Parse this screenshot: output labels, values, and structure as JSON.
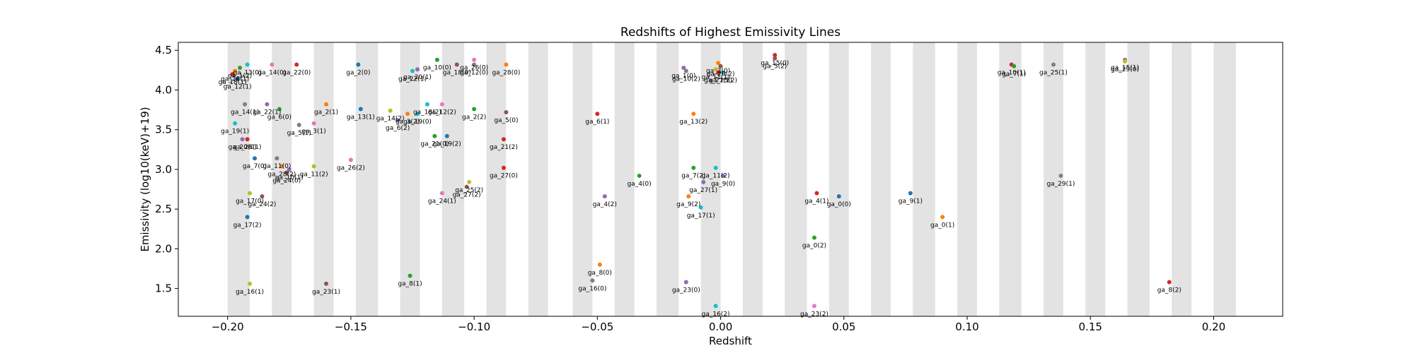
{
  "chart_data": {
    "type": "scatter",
    "title": "Redshifts of Highest Emissivity Lines",
    "xlabel": "Redshift",
    "ylabel": "Emissivity (log10(keV)+19)",
    "xlim": [
      -0.22,
      0.228
    ],
    "ylim": [
      1.15,
      4.6
    ],
    "x_ticks": [
      -0.2,
      -0.15,
      -0.1,
      -0.05,
      0.0,
      0.05,
      0.1,
      0.15,
      0.2
    ],
    "x_tick_labels": [
      "−0.20",
      "−0.15",
      "−0.10",
      "−0.05",
      "0.00",
      "0.05",
      "0.10",
      "0.15",
      "0.20"
    ],
    "y_ticks": [
      1.5,
      2.0,
      2.5,
      3.0,
      3.5,
      4.0,
      4.5
    ],
    "y_tick_labels": [
      "1.5",
      "2.0",
      "2.5",
      "3.0",
      "3.5",
      "4.0",
      "4.5"
    ],
    "grid": false,
    "band_color": "#d9d9d9",
    "shaded_bands": [
      [
        -0.2,
        -0.191
      ],
      [
        -0.182,
        -0.174
      ],
      [
        -0.165,
        -0.157
      ],
      [
        -0.148,
        -0.139
      ],
      [
        -0.13,
        -0.122
      ],
      [
        -0.113,
        -0.104
      ],
      [
        -0.095,
        -0.087
      ],
      [
        -0.078,
        -0.07
      ],
      [
        -0.06,
        -0.052
      ],
      [
        -0.043,
        -0.035
      ],
      [
        -0.026,
        -0.017
      ],
      [
        -0.008,
        0.0
      ],
      [
        0.009,
        0.017
      ],
      [
        0.026,
        0.035
      ],
      [
        0.044,
        0.052
      ],
      [
        0.061,
        0.069
      ],
      [
        0.078,
        0.087
      ],
      [
        0.096,
        0.104
      ],
      [
        0.113,
        0.122
      ],
      [
        0.131,
        0.139
      ],
      [
        0.148,
        0.156
      ],
      [
        0.165,
        0.174
      ],
      [
        0.183,
        0.191
      ],
      [
        0.2,
        0.209
      ]
    ],
    "points": [
      {
        "label": "ga_13(0)",
        "x": -0.192,
        "y": 4.32,
        "color": "#17becf"
      },
      {
        "label": "ga_1(2)",
        "x": -0.195,
        "y": 4.28,
        "color": "#2ca02c"
      },
      {
        "label": "ga_28(1)",
        "x": -0.197,
        "y": 4.24,
        "color": "#ff7f0e"
      },
      {
        "label": "ga_18(1)",
        "x": -0.198,
        "y": 4.2,
        "color": "#d62728"
      },
      {
        "label": "ga_12(1)",
        "x": -0.196,
        "y": 4.14,
        "color": "#1f77b4"
      },
      {
        "label": "ga_14(0)",
        "x": -0.182,
        "y": 4.32,
        "color": "#e377c2"
      },
      {
        "label": "ga_22(0)",
        "x": -0.172,
        "y": 4.32,
        "color": "#d62728"
      },
      {
        "label": "ga_2(0)",
        "x": -0.147,
        "y": 4.32,
        "color": "#1f77b4"
      },
      {
        "label": "ga_20(1)",
        "x": -0.123,
        "y": 4.26,
        "color": "#9467bd"
      },
      {
        "label": "ga_22(1)",
        "x": -0.125,
        "y": 4.24,
        "color": "#17becf"
      },
      {
        "label": "ga_10(0)",
        "x": -0.115,
        "y": 4.38,
        "color": "#2ca02c"
      },
      {
        "label": "ga_18(0)",
        "x": -0.107,
        "y": 4.32,
        "color": "#8c564b"
      },
      {
        "label": "ga_26(0)",
        "x": -0.1,
        "y": 4.38,
        "color": "#e377c2"
      },
      {
        "label": "ga_12(0)",
        "x": -0.1,
        "y": 4.32,
        "color": "#7f7f7f"
      },
      {
        "label": "ga_28(0)",
        "x": -0.087,
        "y": 4.32,
        "color": "#ff7f0e"
      },
      {
        "label": "ga_14(1)",
        "x": -0.193,
        "y": 3.82,
        "color": "#7f7f7f"
      },
      {
        "label": "ga_22(1)",
        "x": -0.184,
        "y": 3.82,
        "color": "#9467bd"
      },
      {
        "label": "ga_6(0)",
        "x": -0.179,
        "y": 3.76,
        "color": "#2ca02c"
      },
      {
        "label": "ga_2(1)",
        "x": -0.16,
        "y": 3.82,
        "color": "#ff7f0e"
      },
      {
        "label": "ga_19(1)",
        "x": -0.197,
        "y": 3.58,
        "color": "#17becf"
      },
      {
        "label": "ga_5(1)",
        "x": -0.171,
        "y": 3.56,
        "color": "#7f7f7f"
      },
      {
        "label": "ga_3(1)",
        "x": -0.165,
        "y": 3.58,
        "color": "#e377c2"
      },
      {
        "label": "ga_13(1)",
        "x": -0.146,
        "y": 3.76,
        "color": "#1f77b4"
      },
      {
        "label": "ga_14(2)",
        "x": -0.134,
        "y": 3.74,
        "color": "#bcbd22"
      },
      {
        "label": "ga_6(2)",
        "x": -0.131,
        "y": 3.62,
        "color": "#9467bd"
      },
      {
        "label": "ga_3(2)",
        "x": -0.127,
        "y": 3.7,
        "color": "#ff7f0e"
      },
      {
        "label": "ga_19(0)",
        "x": -0.123,
        "y": 3.7,
        "color": "#17becf"
      },
      {
        "label": "ga_18(2)",
        "x": -0.119,
        "y": 3.82,
        "color": "#17becf"
      },
      {
        "label": "ga_12(2)",
        "x": -0.113,
        "y": 3.82,
        "color": "#e377c2"
      },
      {
        "label": "ga_2(2)",
        "x": -0.1,
        "y": 3.76,
        "color": "#2ca02c"
      },
      {
        "label": "ga_5(0)",
        "x": -0.087,
        "y": 3.72,
        "color": "#8c564b"
      },
      {
        "label": "ga_20(0)",
        "x": -0.194,
        "y": 3.38,
        "color": "#9467bd"
      },
      {
        "label": "ga_26(1)",
        "x": -0.192,
        "y": 3.38,
        "color": "#d62728"
      },
      {
        "label": "ga_7(0)",
        "x": -0.189,
        "y": 3.14,
        "color": "#1f77b4"
      },
      {
        "label": "ga_11(0)",
        "x": -0.18,
        "y": 3.14,
        "color": "#7f7f7f"
      },
      {
        "label": "ga_28(2)",
        "x": -0.178,
        "y": 3.04,
        "color": "#ff7f0e"
      },
      {
        "label": "ga_10(1)",
        "x": -0.175,
        "y": 3.0,
        "color": "#9467bd"
      },
      {
        "label": "ga_24(0)",
        "x": -0.176,
        "y": 2.96,
        "color": "#8c564b"
      },
      {
        "label": "ga_11(2)",
        "x": -0.165,
        "y": 3.04,
        "color": "#bcbd22"
      },
      {
        "label": "ga_26(2)",
        "x": -0.15,
        "y": 3.12,
        "color": "#e377c2"
      },
      {
        "label": "ga_21(0)",
        "x": -0.116,
        "y": 3.42,
        "color": "#2ca02c"
      },
      {
        "label": "ga_19(2)",
        "x": -0.111,
        "y": 3.42,
        "color": "#1f77b4"
      },
      {
        "label": "ga_21(2)",
        "x": -0.088,
        "y": 3.38,
        "color": "#d62728"
      },
      {
        "label": "ga_27(0)",
        "x": -0.088,
        "y": 3.02,
        "color": "#d62728"
      },
      {
        "label": "ga_25(2)",
        "x": -0.102,
        "y": 2.84,
        "color": "#bcbd22"
      },
      {
        "label": "ga_27(2)",
        "x": -0.103,
        "y": 2.78,
        "color": "#8c564b"
      },
      {
        "label": "ga_24(1)",
        "x": -0.113,
        "y": 2.7,
        "color": "#e377c2"
      },
      {
        "label": "ga_17(0)",
        "x": -0.191,
        "y": 2.7,
        "color": "#bcbd22"
      },
      {
        "label": "ga_24(2)",
        "x": -0.186,
        "y": 2.66,
        "color": "#8c564b"
      },
      {
        "label": "ga_17(2)",
        "x": -0.192,
        "y": 2.4,
        "color": "#1f77b4"
      },
      {
        "label": "ga_16(1)",
        "x": -0.191,
        "y": 1.56,
        "color": "#bcbd22"
      },
      {
        "label": "ga_23(1)",
        "x": -0.16,
        "y": 1.56,
        "color": "#8c564b"
      },
      {
        "label": "ga_8(1)",
        "x": -0.126,
        "y": 1.66,
        "color": "#2ca02c"
      },
      {
        "label": "ga_6(1)",
        "x": -0.05,
        "y": 3.7,
        "color": "#d62728"
      },
      {
        "label": "ga_4(0)",
        "x": -0.033,
        "y": 2.92,
        "color": "#2ca02c"
      },
      {
        "label": "ga_4(2)",
        "x": -0.047,
        "y": 2.66,
        "color": "#9467bd"
      },
      {
        "label": "ga_8(0)",
        "x": -0.049,
        "y": 1.8,
        "color": "#ff7f0e"
      },
      {
        "label": "ga_16(0)",
        "x": -0.052,
        "y": 1.6,
        "color": "#7f7f7f"
      },
      {
        "label": "ga_1(0)",
        "x": -0.015,
        "y": 4.28,
        "color": "#9467bd"
      },
      {
        "label": "ga_10(2)",
        "x": -0.014,
        "y": 4.24,
        "color": "#7f7f7f"
      },
      {
        "label": "ga_13(2)",
        "x": -0.011,
        "y": 3.7,
        "color": "#ff7f0e"
      },
      {
        "label": "ga_7(2)",
        "x": -0.011,
        "y": 3.02,
        "color": "#2ca02c"
      },
      {
        "label": "ga_27(1)",
        "x": -0.007,
        "y": 2.84,
        "color": "#9467bd"
      },
      {
        "label": "ga_9(2)",
        "x": -0.013,
        "y": 2.66,
        "color": "#ff7f0e"
      },
      {
        "label": "ga_17(1)",
        "x": -0.008,
        "y": 2.52,
        "color": "#17becf"
      },
      {
        "label": "ga_23(0)",
        "x": -0.014,
        "y": 1.58,
        "color": "#9467bd"
      },
      {
        "label": "ga_16(2)",
        "x": -0.002,
        "y": 1.28,
        "color": "#17becf"
      },
      {
        "label": "ga_3(0)",
        "x": -0.001,
        "y": 4.34,
        "color": "#ff7f0e"
      },
      {
        "label": "ga_20(2)",
        "x": 0.0,
        "y": 4.3,
        "color": "#8c564b"
      },
      {
        "label": "ga_11(1)",
        "x": -0.002,
        "y": 4.26,
        "color": "#bcbd22"
      },
      {
        "label": "ga_21(1)",
        "x": -0.001,
        "y": 4.22,
        "color": "#d62728"
      },
      {
        "label": "ga_25(2)",
        "x": 0.001,
        "y": 4.22,
        "color": "#17becf"
      },
      {
        "label": "ga_11(2)",
        "x": -0.002,
        "y": 3.02,
        "color": "#17becf"
      },
      {
        "label": "ga_9(0)",
        "x": 0.001,
        "y": 2.92,
        "color": "#9467bd"
      },
      {
        "label": "ga_15(0)",
        "x": 0.022,
        "y": 4.44,
        "color": "#d62728"
      },
      {
        "label": "ga_5(2)",
        "x": 0.022,
        "y": 4.4,
        "color": "#8c564b"
      },
      {
        "label": "ga_4(1)",
        "x": 0.039,
        "y": 2.7,
        "color": "#d62728"
      },
      {
        "label": "ga_0(0)",
        "x": 0.048,
        "y": 2.66,
        "color": "#1f77b4"
      },
      {
        "label": "ga_0(2)",
        "x": 0.038,
        "y": 2.14,
        "color": "#2ca02c"
      },
      {
        "label": "ga_23(2)",
        "x": 0.038,
        "y": 1.28,
        "color": "#e377c2"
      },
      {
        "label": "ga_9(1)",
        "x": 0.077,
        "y": 2.7,
        "color": "#1f77b4"
      },
      {
        "label": "ga_0(1)",
        "x": 0.09,
        "y": 2.4,
        "color": "#ff7f0e"
      },
      {
        "label": "ga_10(1)",
        "x": 0.118,
        "y": 4.32,
        "color": "#d62728"
      },
      {
        "label": "ga_7(1)",
        "x": 0.119,
        "y": 4.3,
        "color": "#2ca02c"
      },
      {
        "label": "ga_25(1)",
        "x": 0.135,
        "y": 4.32,
        "color": "#7f7f7f"
      },
      {
        "label": "ga_29(1)",
        "x": 0.138,
        "y": 2.92,
        "color": "#7f7f7f"
      },
      {
        "label": "ga_15(1)",
        "x": 0.164,
        "y": 4.38,
        "color": "#9467bd"
      },
      {
        "label": "ga_29(0)",
        "x": 0.164,
        "y": 4.36,
        "color": "#bcbd22"
      },
      {
        "label": "ga_8(2)",
        "x": 0.182,
        "y": 1.58,
        "color": "#d62728"
      }
    ]
  }
}
